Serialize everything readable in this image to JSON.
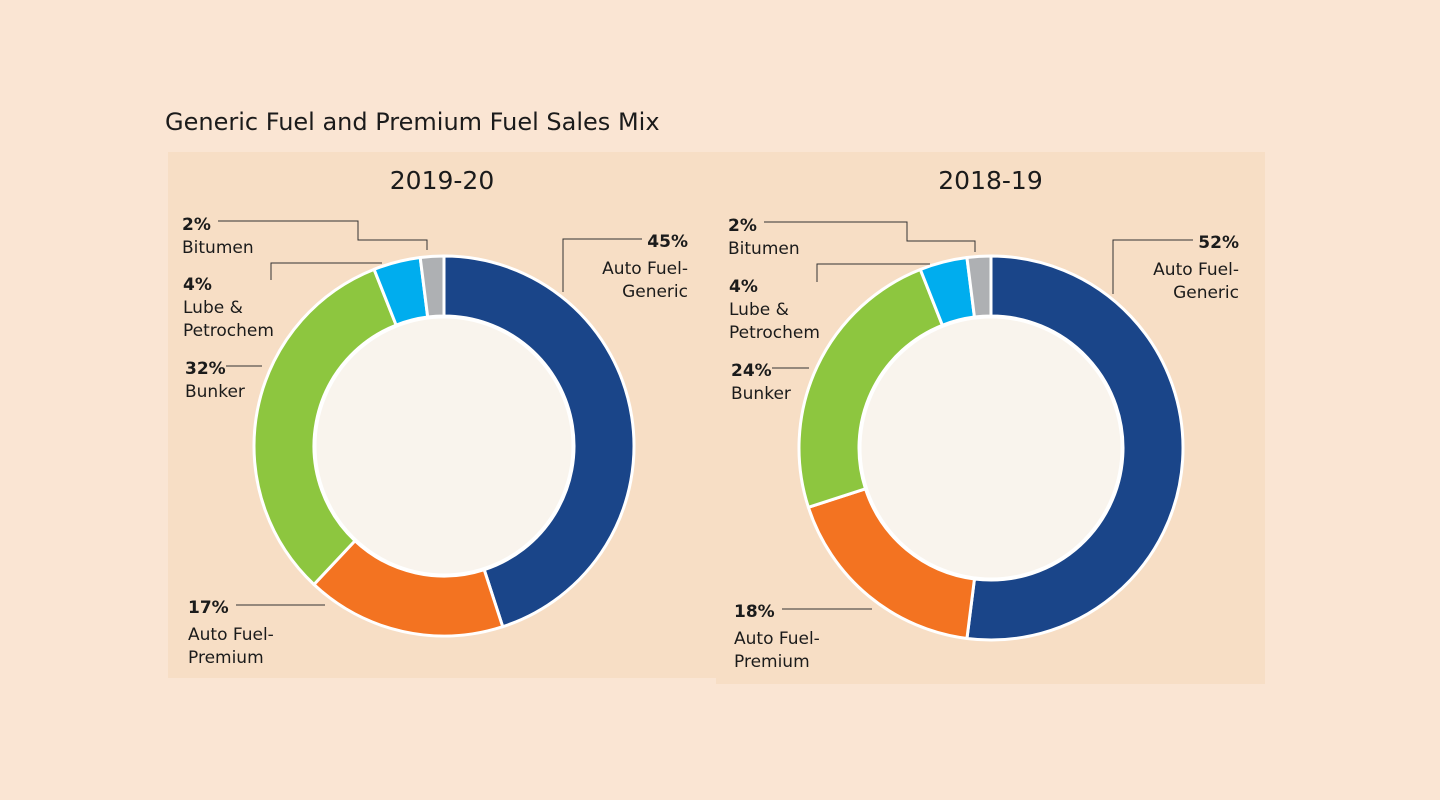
{
  "title": "Generic Fuel and Premium Fuel Sales Mix",
  "colors": {
    "background": "#fae5d3",
    "panel": "#f7dec5",
    "center": "#f9f4ed",
    "auto_fuel_generic": "#1a4589",
    "auto_fuel_premium": "#f37321",
    "bunker": "#8dc63f",
    "lube_petrochem": "#00adee",
    "bitumen": "#aeb0b3"
  },
  "chart_data": [
    {
      "type": "pie",
      "title": "2019-20",
      "donut": true,
      "slices": [
        {
          "key": "auto_fuel_generic",
          "pct_label": "45%",
          "label": "Auto Fuel-Generic",
          "value": 45
        },
        {
          "key": "auto_fuel_premium",
          "pct_label": "17%",
          "label": "Auto Fuel-Premium",
          "value": 17
        },
        {
          "key": "bunker",
          "pct_label": "32%",
          "label": "Bunker",
          "value": 32
        },
        {
          "key": "lube_petrochem",
          "pct_label": "4%",
          "label": "Lube & Petrochem",
          "value": 4
        },
        {
          "key": "bitumen",
          "pct_label": "2%",
          "label": "Bitumen",
          "value": 2
        }
      ]
    },
    {
      "type": "pie",
      "title": "2018-19",
      "donut": true,
      "slices": [
        {
          "key": "auto_fuel_generic",
          "pct_label": "52%",
          "label": "Auto Fuel-Generic",
          "value": 52
        },
        {
          "key": "auto_fuel_premium",
          "pct_label": "18%",
          "label": "Auto Fuel-Premium",
          "value": 18
        },
        {
          "key": "bunker",
          "pct_label": "24%",
          "label": "Bunker",
          "value": 24
        },
        {
          "key": "lube_petrochem",
          "pct_label": "4%",
          "label": "Lube & Petrochem",
          "value": 4
        },
        {
          "key": "bitumen",
          "pct_label": "2%",
          "label": "Bitumen",
          "value": 2
        }
      ]
    }
  ]
}
